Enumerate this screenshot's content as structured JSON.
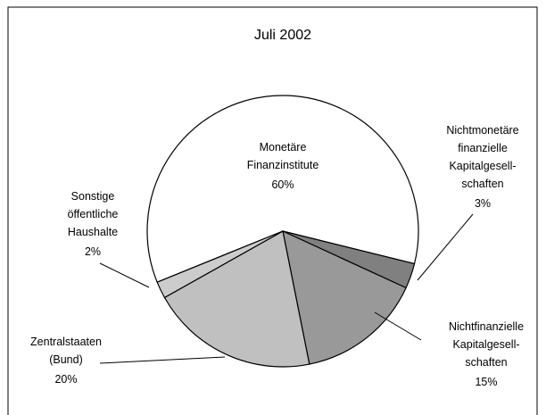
{
  "chart_data": {
    "type": "pie",
    "title": "Juli 2002",
    "categories": [
      "Monetäre\nFinanzinstitute",
      "Nichtmonetäre\nfinanzielle\nKapitalgesell-\nschaften",
      "Nichtfinanzielle\nKapitalgesell-\nschaften",
      "Zentralstaaten\n(Bund)",
      "Sonstige\nöffentliche\nHaushalte"
    ],
    "values": [
      60,
      3,
      15,
      20,
      2
    ],
    "value_labels": [
      "60%",
      "3%",
      "15%",
      "20%",
      "2%"
    ],
    "colors": [
      "#ffffff",
      "#808080",
      "#999999",
      "#c0c0c0",
      "#cccccc"
    ]
  }
}
